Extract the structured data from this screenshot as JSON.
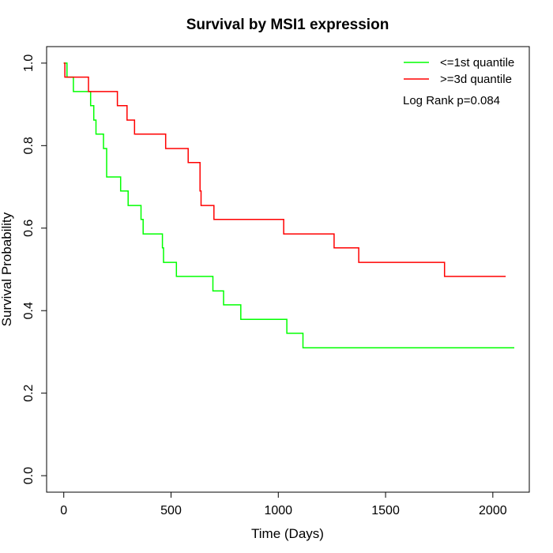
{
  "chart_data": {
    "type": "line",
    "step": true,
    "title": "Survival by MSI1 expression",
    "xlabel": "Time (Days)",
    "ylabel": "Survival Probability",
    "xlim": [
      -80,
      2170
    ],
    "ylim": [
      -0.04,
      1.04
    ],
    "xticks": [
      0,
      500,
      1000,
      1500,
      2000
    ],
    "xtick_labels": [
      "0",
      "500",
      "1000",
      "1500",
      "2000"
    ],
    "yticks": [
      0.0,
      0.2,
      0.4,
      0.6,
      0.8,
      1.0
    ],
    "ytick_labels": [
      "0.0",
      "0.2",
      "0.4",
      "0.6",
      "0.8",
      "1.0"
    ],
    "legend_position": "top-right",
    "annotation": "Log Rank p=0.084",
    "series": [
      {
        "name": "<=1st quantile",
        "color": "#00ff00",
        "x": [
          0,
          15,
          45,
          125,
          140,
          150,
          160,
          185,
          200,
          265,
          300,
          360,
          370,
          460,
          465,
          470,
          525,
          695,
          745,
          825,
          1040,
          1115,
          2100
        ],
        "y": [
          1.0,
          0.966,
          0.931,
          0.897,
          0.862,
          0.828,
          0.828,
          0.793,
          0.724,
          0.69,
          0.655,
          0.621,
          0.586,
          0.552,
          0.517,
          0.517,
          0.483,
          0.448,
          0.414,
          0.379,
          0.345,
          0.31,
          0.31
        ]
      },
      {
        "name": ">=3d quantile",
        "color": "#ff0000",
        "x": [
          0,
          5,
          115,
          250,
          295,
          330,
          475,
          580,
          635,
          640,
          650,
          700,
          1025,
          1260,
          1375,
          1775,
          2060
        ],
        "y": [
          1.0,
          0.966,
          0.931,
          0.897,
          0.862,
          0.828,
          0.793,
          0.759,
          0.69,
          0.655,
          0.655,
          0.621,
          0.586,
          0.552,
          0.517,
          0.483,
          0.483
        ]
      }
    ]
  }
}
